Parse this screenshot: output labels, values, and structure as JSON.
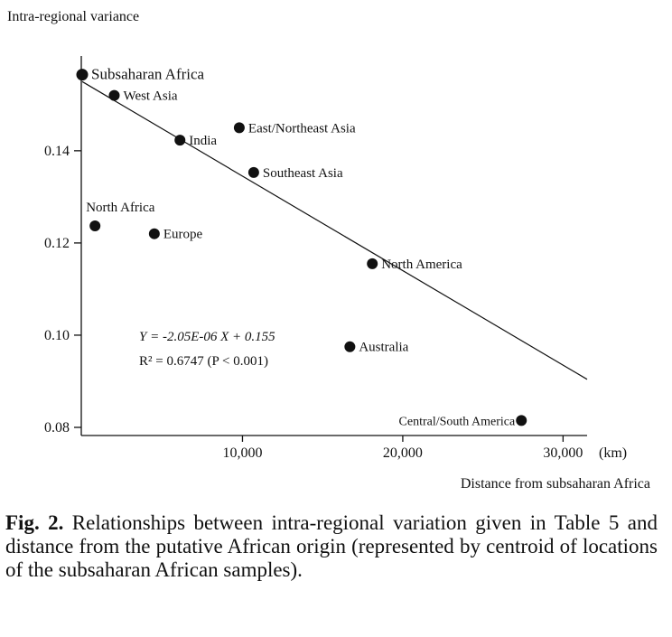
{
  "chart_data": {
    "type": "scatter",
    "ylabel": "Intra-regional variance",
    "xlabel": "Distance from subsaharan Africa",
    "x_unit": "(km)",
    "xlim": [
      0,
      31500
    ],
    "ylim": [
      0.08,
      0.158
    ],
    "x_ticks": [
      {
        "value": 10000,
        "label": "10,000"
      },
      {
        "value": 20000,
        "label": "20,000"
      },
      {
        "value": 30000,
        "label": "30,000"
      }
    ],
    "y_ticks": [
      {
        "value": 0.08,
        "label": "0.08"
      },
      {
        "value": 0.1,
        "label": "0.10"
      },
      {
        "value": 0.12,
        "label": "0.12"
      },
      {
        "value": 0.14,
        "label": "0.14"
      }
    ],
    "points": [
      {
        "label": "Subsaharan Africa",
        "x": 0,
        "y": 0.1565,
        "label_pos": "right",
        "big": true
      },
      {
        "label": "West Asia",
        "x": 2000,
        "y": 0.152,
        "label_pos": "right"
      },
      {
        "label": "India",
        "x": 6100,
        "y": 0.1423,
        "label_pos": "right"
      },
      {
        "label": "East/Northeast Asia",
        "x": 9800,
        "y": 0.145,
        "label_pos": "right"
      },
      {
        "label": "Southeast Asia",
        "x": 10700,
        "y": 0.1353,
        "label_pos": "right"
      },
      {
        "label": "North Africa",
        "x": 800,
        "y": 0.1237,
        "label_pos": "above"
      },
      {
        "label": "Europe",
        "x": 4500,
        "y": 0.122,
        "label_pos": "right"
      },
      {
        "label": "North America",
        "x": 18100,
        "y": 0.1155,
        "label_pos": "right"
      },
      {
        "label": "Australia",
        "x": 16700,
        "y": 0.0975,
        "label_pos": "right"
      },
      {
        "label": "Central/South America",
        "x": 27400,
        "y": 0.0815,
        "label_pos": "left"
      }
    ],
    "regression": {
      "slope": -2.05e-06,
      "intercept": 0.155,
      "x_range": [
        0,
        31500
      ],
      "equation": "Y = -2.05E-06 X + 0.155",
      "r2_text": "R² = 0.6747 (P < 0.001)"
    },
    "grid": false,
    "legend": "none"
  },
  "caption": {
    "label": "Fig.  2.",
    "text": " Relationships between intra-regional variation given in Table 5 and distance from the putative African origin (represented by centroid of locations of the subsaharan African samples)."
  }
}
